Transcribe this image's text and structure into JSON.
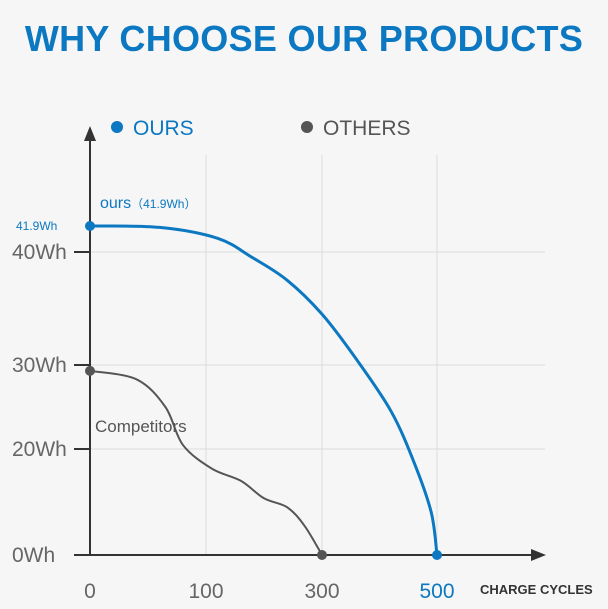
{
  "title": "WHY CHOOSE OUR PRODUCTS",
  "chart_data": {
    "type": "line",
    "title": "WHY CHOOSE OUR PRODUCTS",
    "xlabel": "CHARGE CYCLES",
    "ylabel": "",
    "x_ticks": [
      "0",
      "100",
      "300",
      "500"
    ],
    "y_ticks": [
      "0Wh",
      "20Wh",
      "30Wh",
      "40Wh"
    ],
    "grid": true,
    "legend": {
      "placement": "top",
      "entries": [
        {
          "name": "OURS",
          "color": "#0b78c1"
        },
        {
          "name": "OTHERS",
          "color": "#555555"
        }
      ]
    },
    "series": [
      {
        "name": "OURS",
        "color": "#0b78c1",
        "label": "ours",
        "label_value": "（41.9Wh）",
        "start_value_label": "41.9Wh",
        "end_value_label": "500",
        "x": [
          0,
          60,
          120,
          180,
          240,
          300,
          360,
          420,
          460,
          490,
          500
        ],
        "y": [
          41.9,
          41.8,
          41.0,
          39.5,
          37.5,
          34.5,
          30.5,
          24.5,
          17.5,
          8.0,
          0
        ]
      },
      {
        "name": "OTHERS",
        "color": "#555555",
        "label": "Competitors",
        "x": [
          0,
          40,
          65,
          80,
          110,
          160,
          200,
          240,
          270,
          300
        ],
        "y": [
          29.3,
          28.3,
          25.0,
          20.5,
          16.3,
          14.0,
          10.7,
          9.0,
          5.5,
          0
        ]
      }
    ]
  }
}
